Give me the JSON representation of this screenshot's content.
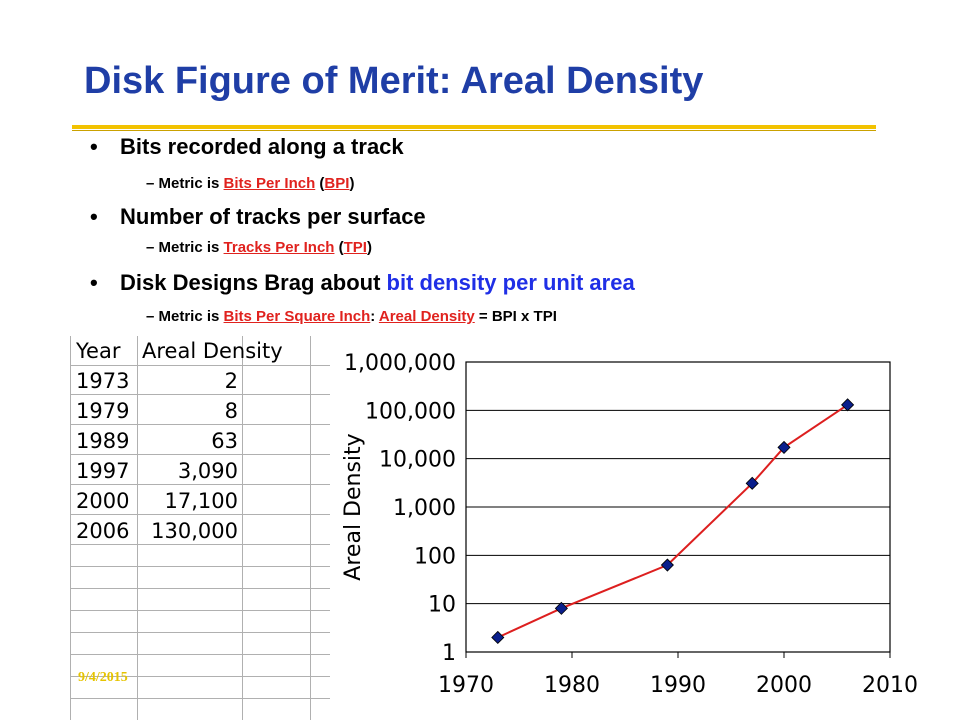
{
  "slide": {
    "title": "Disk Figure of Merit: Areal Density",
    "bullets": [
      {
        "text": "Bits recorded along a track"
      },
      {
        "text": "Number of tracks per surface"
      },
      {
        "prefix": "Disk Designs Brag about ",
        "highlight": "bit density per unit area"
      }
    ],
    "subs": [
      {
        "prefix": "Metric is ",
        "link1": "Bits Per Inch",
        "mid": " (",
        "link2": "BPI",
        "suffix": ")"
      },
      {
        "prefix": "Metric is ",
        "link1": "Tracks Per Inch",
        "mid": " (",
        "link2": "TPI",
        "suffix": ")"
      },
      {
        "prefix": "Metric is  ",
        "link1": "Bits Per Square Inch",
        "mid": ": ",
        "link2": "Areal Density",
        "suffix": " = BPI x TPI"
      }
    ],
    "bullet_char": "•",
    "dash_char": "–",
    "date": "9/4/2015"
  },
  "table": {
    "headers": [
      "Year",
      "Areal Density"
    ],
    "rows": [
      [
        "1973",
        "2"
      ],
      [
        "1979",
        "8"
      ],
      [
        "1989",
        "63"
      ],
      [
        "1997",
        "3,090"
      ],
      [
        "2000",
        "17,100"
      ],
      [
        "2006",
        "130,000"
      ]
    ]
  },
  "chart_data": {
    "type": "scatter",
    "x": [
      1973,
      1979,
      1989,
      1997,
      2000,
      2006
    ],
    "y": [
      2,
      8,
      63,
      3090,
      17100,
      130000
    ],
    "ylabel": "Areal Density",
    "xlim": [
      1970,
      2010
    ],
    "ylim": [
      1,
      1000000
    ],
    "yscale": "log",
    "xticks": [
      "1970",
      "1980",
      "1990",
      "2000",
      "2010"
    ],
    "yticks": [
      "1",
      "10",
      "100",
      "1,000",
      "10,000",
      "100,000",
      "1,000,000"
    ],
    "grid": "horizontal",
    "line_color": "#dd1f1f",
    "marker_color": "#0a1f8c"
  },
  "colors": {
    "title": "#1f3ea6",
    "link": "#e0221e",
    "highlight": "#1f2fe6",
    "rule": "#f2c200"
  }
}
